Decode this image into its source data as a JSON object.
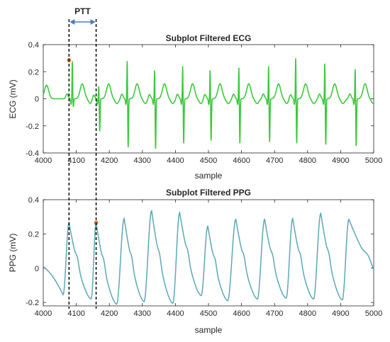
{
  "annotation": {
    "label": "PTT",
    "start_sample": 4078,
    "end_sample": 4160,
    "line_color": "#000000",
    "arrow_color": "#4a7ebb"
  },
  "chart_data": [
    {
      "type": "line",
      "title": "Subplot Filtered ECG",
      "xlabel": "sample",
      "ylabel": "ECG (mV)",
      "xlim": [
        4000,
        5000
      ],
      "ylim": [
        -0.4,
        0.4
      ],
      "xticks": [
        4000,
        4100,
        4200,
        4300,
        4400,
        4500,
        4600,
        4700,
        4800,
        4900,
        5000
      ],
      "yticks": [
        -0.4,
        -0.2,
        0,
        0.2,
        0.4
      ],
      "grid": false,
      "color": "#3cc83c",
      "r_peaks": [
        {
          "x": 4088,
          "peak": 0.28,
          "trough": -0.06
        },
        {
          "x": 4168,
          "peak": 0.1,
          "trough": -0.24
        },
        {
          "x": 4254,
          "peak": 0.29,
          "trough": -0.36
        },
        {
          "x": 4337,
          "peak": 0.22,
          "trough": -0.37
        },
        {
          "x": 4422,
          "peak": 0.25,
          "trough": -0.33
        },
        {
          "x": 4505,
          "peak": 0.22,
          "trough": -0.31
        },
        {
          "x": 4592,
          "peak": 0.24,
          "trough": -0.33
        },
        {
          "x": 4682,
          "peak": 0.25,
          "trough": -0.32
        },
        {
          "x": 4764,
          "peak": 0.31,
          "trough": -0.33
        },
        {
          "x": 4852,
          "peak": 0.27,
          "trough": -0.34
        },
        {
          "x": 4944,
          "peak": 0.23,
          "trough": -0.35
        }
      ],
      "marker": {
        "x": 4078,
        "y": 0.285,
        "color": "#e07b39"
      }
    },
    {
      "type": "line",
      "title": "Subplot Filtered PPG",
      "xlabel": "sample",
      "ylabel": "PPG (mV)",
      "xlim": [
        4000,
        5000
      ],
      "ylim": [
        -0.22,
        0.4
      ],
      "xticks": [
        4000,
        4100,
        4200,
        4300,
        4400,
        4500,
        4600,
        4700,
        4800,
        4900,
        5000
      ],
      "yticks": [
        -0.2,
        0,
        0.2,
        0.4
      ],
      "grid": false,
      "color": "#5aa8b8",
      "beats": [
        {
          "foot": 4060,
          "peak_x": 4078,
          "peak": 0.265,
          "trough": -0.155
        },
        {
          "foot": 4145,
          "peak_x": 4160,
          "peak": 0.265,
          "trough": -0.18
        },
        {
          "foot": 4222,
          "peak_x": 4245,
          "peak": 0.29,
          "trough": -0.21
        },
        {
          "foot": 4305,
          "peak_x": 4328,
          "peak": 0.335,
          "trough": -0.195
        },
        {
          "foot": 4392,
          "peak_x": 4413,
          "peak": 0.325,
          "trough": -0.205
        },
        {
          "foot": 4478,
          "peak_x": 4498,
          "peak": 0.245,
          "trough": -0.16
        },
        {
          "foot": 4558,
          "peak_x": 4583,
          "peak": 0.285,
          "trough": -0.19
        },
        {
          "foot": 4648,
          "peak_x": 4670,
          "peak": 0.285,
          "trough": -0.18
        },
        {
          "foot": 4735,
          "peak_x": 4755,
          "peak": 0.29,
          "trough": -0.175
        },
        {
          "foot": 4818,
          "peak_x": 4840,
          "peak": 0.32,
          "trough": -0.18
        },
        {
          "foot": 4905,
          "peak_x": 4925,
          "peak": 0.285,
          "trough": -0.185
        }
      ],
      "end_value": -0.18,
      "marker": {
        "x": 4160,
        "y": 0.265,
        "color": "#e07b39"
      }
    }
  ]
}
